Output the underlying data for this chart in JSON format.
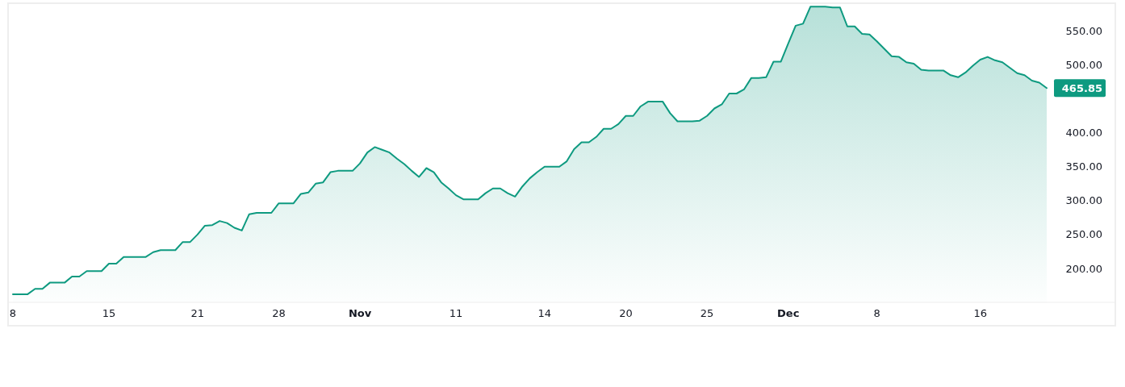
{
  "chart_data": {
    "type": "area",
    "categories": [
      "8",
      null,
      null,
      null,
      null,
      null,
      null,
      null,
      null,
      null,
      null,
      null,
      null,
      "15",
      null,
      null,
      null,
      null,
      null,
      null,
      null,
      null,
      null,
      null,
      null,
      "21",
      null,
      null,
      null,
      null,
      null,
      null,
      null,
      null,
      null,
      null,
      "28",
      null,
      null,
      null,
      null,
      null,
      null,
      null,
      null,
      null,
      null,
      "Nov",
      null,
      null,
      null,
      null,
      null,
      null,
      null,
      null,
      null,
      null,
      null,
      null,
      "11",
      null,
      null,
      null,
      null,
      null,
      null,
      null,
      null,
      null,
      null,
      null,
      "14",
      null,
      null,
      null,
      null,
      null,
      null,
      null,
      null,
      null,
      null,
      "20",
      null,
      null,
      null,
      null,
      null,
      null,
      null,
      null,
      null,
      null,
      "25",
      null,
      null,
      null,
      null,
      null,
      null,
      null,
      null,
      null,
      null,
      "Dec",
      null,
      null,
      null,
      null,
      null,
      null,
      null,
      null,
      null,
      null,
      null,
      "8",
      null,
      null,
      null,
      null,
      null,
      null,
      null,
      null,
      null,
      null,
      null,
      null,
      null,
      "16",
      null,
      null,
      null,
      null,
      null,
      null,
      null,
      null,
      null
    ],
    "series": [
      {
        "color": "#0e9a80",
        "values": [
          162,
          162,
          162,
          170,
          170,
          179,
          179,
          179,
          188,
          188,
          196,
          196,
          196,
          207,
          207,
          217,
          217,
          217,
          217,
          224,
          227,
          227,
          227,
          239,
          239,
          250,
          263,
          264,
          270,
          267,
          260,
          256,
          280,
          282,
          282,
          282,
          296,
          296,
          296,
          310,
          312,
          325,
          327,
          342,
          344,
          344,
          344,
          355,
          371,
          379,
          375,
          371,
          362,
          354,
          344,
          335,
          348,
          342,
          327,
          318,
          308,
          302,
          302,
          302,
          311,
          318,
          318,
          311,
          306,
          321,
          333,
          342,
          350,
          350,
          350,
          358,
          376,
          386,
          386,
          394,
          406,
          406,
          413,
          425,
          425,
          439,
          446,
          446,
          446,
          429,
          417,
          417,
          417,
          418,
          425,
          436,
          442,
          458,
          458,
          464,
          481,
          481,
          482,
          505,
          505,
          532,
          558,
          561,
          586,
          586,
          586,
          585,
          585,
          557,
          557,
          546,
          545,
          535,
          524,
          513,
          512,
          504,
          502,
          493,
          492,
          492,
          492,
          485,
          482,
          489,
          499,
          508,
          512,
          507,
          504,
          496,
          488,
          485,
          477,
          474,
          466
        ]
      }
    ],
    "ylim": [
      150,
      590
    ],
    "yticks": [
      {
        "value": 200,
        "label": "200.00"
      },
      {
        "value": 250,
        "label": "250.00"
      },
      {
        "value": 300,
        "label": "300.00"
      },
      {
        "value": 350,
        "label": "350.00"
      },
      {
        "value": 400,
        "label": "400.00"
      },
      {
        "value": 500,
        "label": "500.00"
      },
      {
        "value": 550,
        "label": "550.00"
      }
    ],
    "annotations": [
      "465.85"
    ]
  }
}
